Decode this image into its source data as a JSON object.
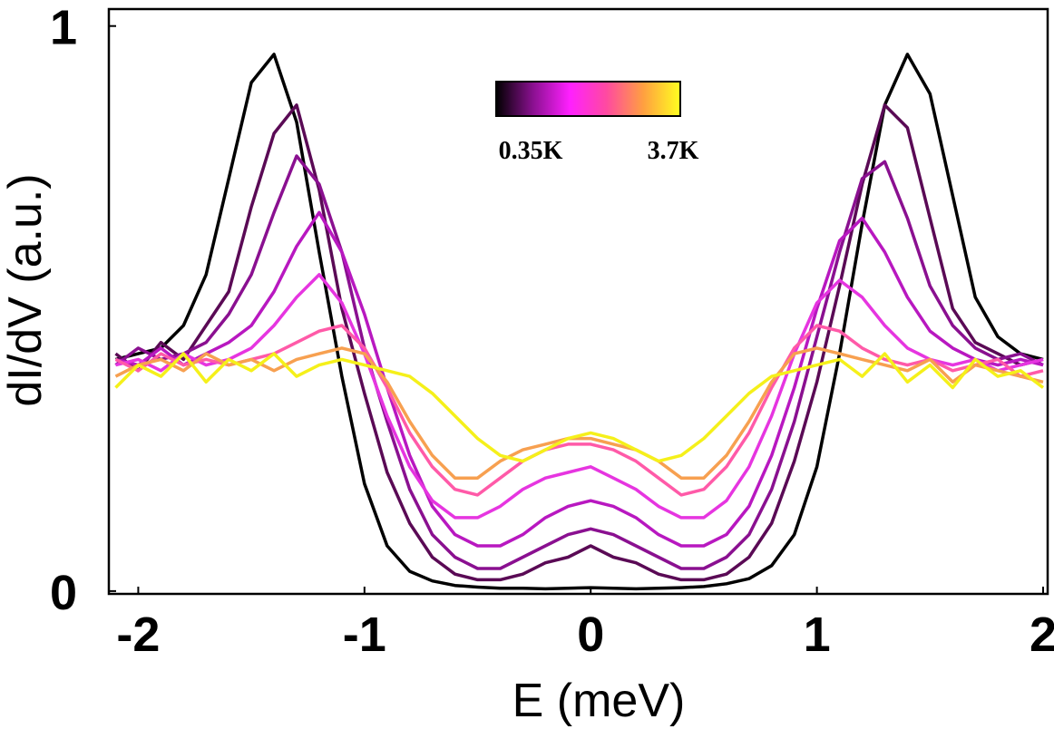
{
  "chart_data": {
    "type": "line",
    "xlabel": "E (meV)",
    "ylabel": "dI/dV (a.u.)",
    "x": [
      -2.1,
      -2.0,
      -1.9,
      -1.8,
      -1.7,
      -1.6,
      -1.5,
      -1.4,
      -1.3,
      -1.2,
      -1.1,
      -1.0,
      -0.9,
      -0.8,
      -0.7,
      -0.6,
      -0.5,
      -0.4,
      -0.3,
      -0.2,
      -0.1,
      0,
      0.1,
      0.2,
      0.3,
      0.4,
      0.5,
      0.6,
      0.7,
      0.8,
      0.9,
      1.0,
      1.1,
      1.2,
      1.3,
      1.4,
      1.5,
      1.6,
      1.7,
      1.8,
      1.9,
      2.0
    ],
    "xlim": [
      -2.13,
      2.02
    ],
    "xticks": [
      -2,
      -1,
      0,
      1,
      2
    ],
    "ylim": [
      -0.005,
      1.03
    ],
    "yticks": [
      0,
      1
    ],
    "series": [
      {
        "color": "#000000",
        "values": [
          0.41,
          0.42,
          0.43,
          0.47,
          0.56,
          0.73,
          0.9,
          0.95,
          0.83,
          0.6,
          0.38,
          0.19,
          0.08,
          0.035,
          0.018,
          0.01,
          0.007,
          0.005,
          0.005,
          0.004,
          0.005,
          0.006,
          0.005,
          0.004,
          0.005,
          0.006,
          0.008,
          0.013,
          0.022,
          0.045,
          0.1,
          0.22,
          0.42,
          0.65,
          0.86,
          0.95,
          0.88,
          0.7,
          0.52,
          0.45,
          0.42,
          0.41
        ]
      },
      {
        "color": "#5a0a55",
        "values": [
          0.42,
          0.39,
          0.44,
          0.41,
          0.47,
          0.53,
          0.68,
          0.81,
          0.86,
          0.71,
          0.5,
          0.35,
          0.21,
          0.12,
          0.06,
          0.03,
          0.02,
          0.02,
          0.03,
          0.05,
          0.06,
          0.08,
          0.06,
          0.05,
          0.03,
          0.02,
          0.02,
          0.03,
          0.06,
          0.12,
          0.23,
          0.37,
          0.54,
          0.72,
          0.86,
          0.82,
          0.66,
          0.5,
          0.44,
          0.42,
          0.4,
          0.41
        ]
      },
      {
        "color": "#8a1090",
        "values": [
          0.4,
          0.43,
          0.41,
          0.42,
          0.44,
          0.49,
          0.56,
          0.67,
          0.77,
          0.72,
          0.6,
          0.43,
          0.3,
          0.18,
          0.1,
          0.06,
          0.04,
          0.04,
          0.06,
          0.08,
          0.1,
          0.11,
          0.1,
          0.08,
          0.06,
          0.04,
          0.04,
          0.06,
          0.1,
          0.18,
          0.3,
          0.45,
          0.6,
          0.73,
          0.76,
          0.66,
          0.54,
          0.47,
          0.43,
          0.41,
          0.42,
          0.4
        ]
      },
      {
        "color": "#b818c0",
        "values": [
          0.41,
          0.4,
          0.43,
          0.4,
          0.42,
          0.44,
          0.47,
          0.53,
          0.61,
          0.67,
          0.6,
          0.49,
          0.36,
          0.24,
          0.15,
          0.1,
          0.08,
          0.08,
          0.1,
          0.13,
          0.15,
          0.16,
          0.15,
          0.13,
          0.1,
          0.08,
          0.08,
          0.1,
          0.15,
          0.24,
          0.36,
          0.5,
          0.62,
          0.66,
          0.6,
          0.52,
          0.46,
          0.43,
          0.41,
          0.4,
          0.41,
          0.4
        ]
      },
      {
        "color": "#e635e0",
        "values": [
          0.4,
          0.41,
          0.39,
          0.42,
          0.4,
          0.41,
          0.43,
          0.47,
          0.52,
          0.56,
          0.51,
          0.42,
          0.31,
          0.22,
          0.16,
          0.13,
          0.13,
          0.15,
          0.18,
          0.2,
          0.21,
          0.22,
          0.2,
          0.18,
          0.15,
          0.13,
          0.13,
          0.16,
          0.22,
          0.31,
          0.42,
          0.51,
          0.55,
          0.52,
          0.47,
          0.43,
          0.41,
          0.4,
          0.41,
          0.39,
          0.4,
          0.41
        ]
      },
      {
        "color": "#ff5aa8",
        "values": [
          0.41,
          0.39,
          0.42,
          0.4,
          0.41,
          0.4,
          0.41,
          0.42,
          0.44,
          0.46,
          0.47,
          0.43,
          0.36,
          0.28,
          0.22,
          0.18,
          0.17,
          0.2,
          0.23,
          0.25,
          0.26,
          0.26,
          0.25,
          0.23,
          0.2,
          0.17,
          0.18,
          0.22,
          0.28,
          0.36,
          0.43,
          0.47,
          0.46,
          0.43,
          0.41,
          0.4,
          0.41,
          0.39,
          0.4,
          0.41,
          0.38,
          0.39
        ]
      },
      {
        "color": "#f7a050",
        "values": [
          0.38,
          0.4,
          0.41,
          0.39,
          0.42,
          0.4,
          0.41,
          0.39,
          0.41,
          0.42,
          0.43,
          0.42,
          0.37,
          0.3,
          0.24,
          0.2,
          0.2,
          0.23,
          0.25,
          0.26,
          0.27,
          0.27,
          0.26,
          0.25,
          0.23,
          0.2,
          0.2,
          0.24,
          0.3,
          0.37,
          0.42,
          0.43,
          0.42,
          0.41,
          0.4,
          0.39,
          0.41,
          0.37,
          0.4,
          0.39,
          0.38,
          0.37
        ]
      },
      {
        "color": "#f5f01a",
        "values": [
          0.36,
          0.4,
          0.38,
          0.42,
          0.37,
          0.41,
          0.39,
          0.42,
          0.38,
          0.4,
          0.41,
          0.4,
          0.39,
          0.38,
          0.35,
          0.31,
          0.27,
          0.24,
          0.23,
          0.25,
          0.27,
          0.28,
          0.27,
          0.25,
          0.23,
          0.24,
          0.27,
          0.31,
          0.35,
          0.38,
          0.39,
          0.4,
          0.41,
          0.38,
          0.42,
          0.37,
          0.4,
          0.36,
          0.41,
          0.38,
          0.39,
          0.36
        ]
      }
    ],
    "colorbar": {
      "colors": [
        "#000000",
        "#8a1090",
        "#ff20ff",
        "#ff4aa0",
        "#ffa040",
        "#ffff20"
      ],
      "labels": [
        "0.35K",
        "3.7K"
      ]
    }
  }
}
